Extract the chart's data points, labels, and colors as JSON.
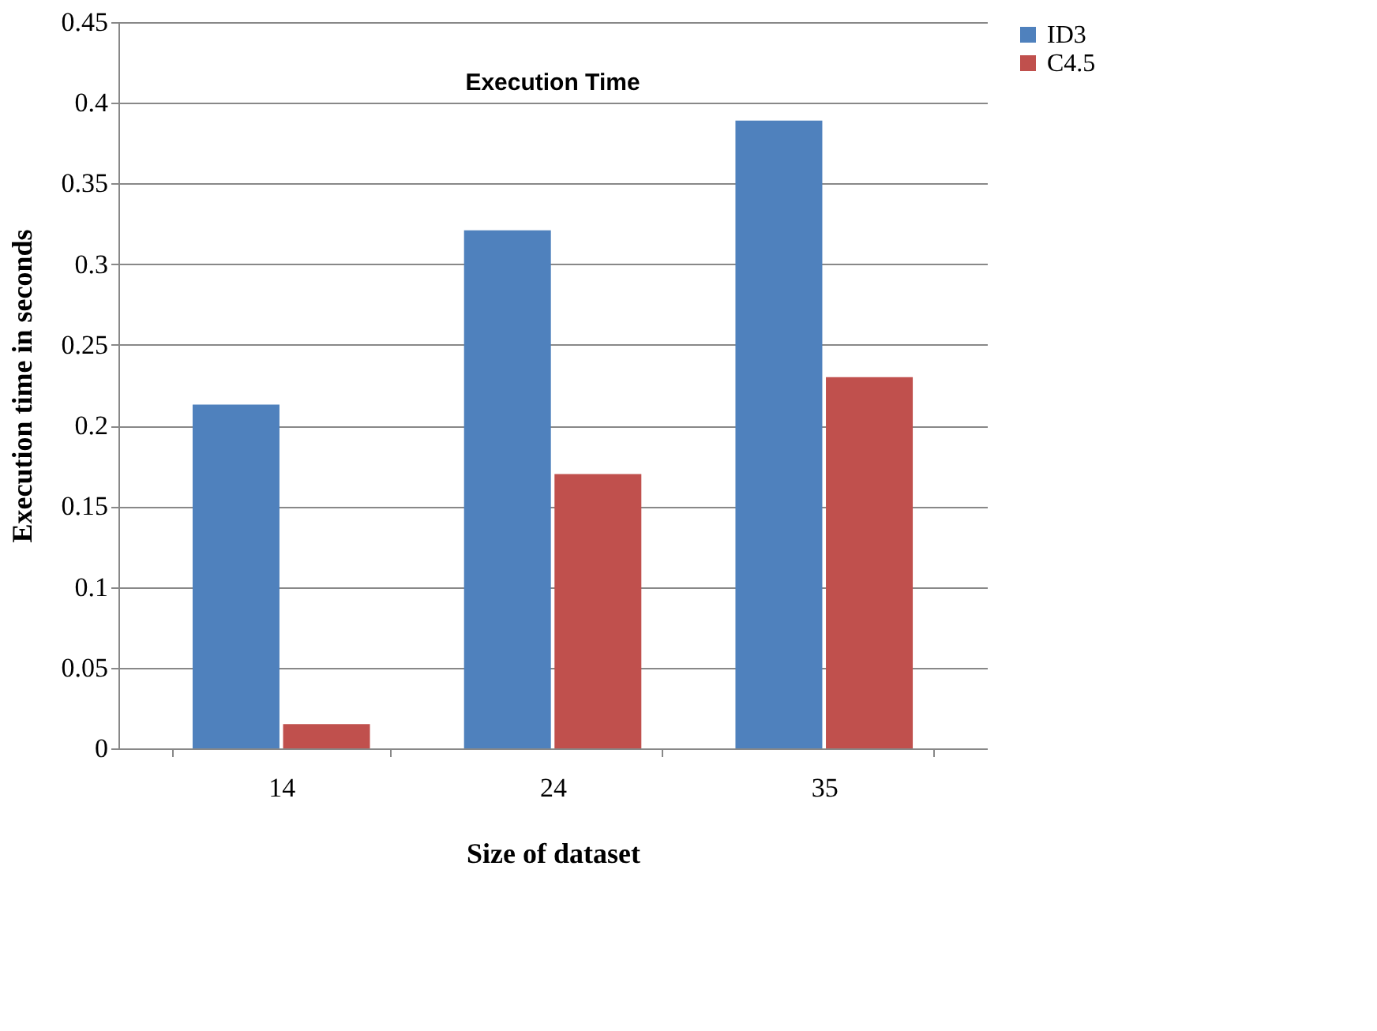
{
  "chart_data": {
    "type": "bar",
    "title": "Execution Time",
    "xlabel": "Size of dataset",
    "ylabel": "Execution time in seconds",
    "categories": [
      "14",
      "24",
      "35"
    ],
    "series": [
      {
        "name": "ID3",
        "color": "#4f81bd",
        "values": [
          0.213,
          0.321,
          0.389
        ]
      },
      {
        "name": "C4.5",
        "color": "#c0504d",
        "values": [
          0.015,
          0.17,
          0.23
        ]
      }
    ],
    "ylim": [
      0,
      0.45
    ],
    "yticks": [
      {
        "value": 0,
        "label": "0"
      },
      0.05,
      0.1,
      0.15,
      0.2,
      0.25,
      0.3,
      0.35,
      0.4,
      0.45
    ],
    "grid": "y",
    "legend": "right"
  }
}
